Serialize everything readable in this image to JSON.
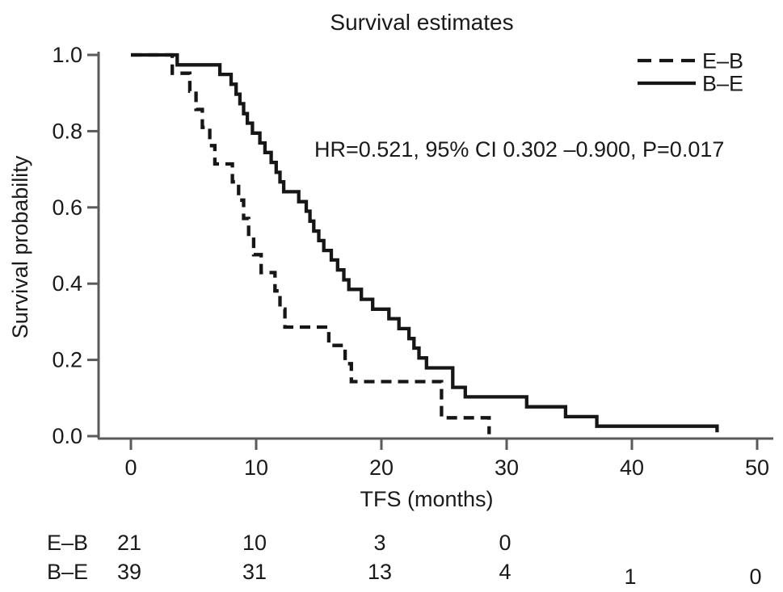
{
  "figure": {
    "title": "Survival estimates",
    "annotation": "HR=0.521, 95% CI 0.302 –0.900, P=0.017"
  },
  "chart_data": {
    "type": "line",
    "subtype": "kaplan-meier-step",
    "title": "Survival estimates",
    "xlabel": "TFS (months)",
    "ylabel": "Survival probability",
    "xlim": [
      0,
      50
    ],
    "ylim": [
      0.0,
      1.0
    ],
    "grid": false,
    "x_ticks": {
      "values": [
        0,
        10,
        20,
        30,
        40,
        50
      ],
      "labels": [
        "0",
        "10",
        "20",
        "30",
        "40",
        "50"
      ]
    },
    "y_ticks": {
      "values": [
        0.0,
        0.2,
        0.4,
        0.6,
        0.8,
        1.0
      ],
      "labels": [
        "0.0",
        "0.2",
        "0.4",
        "0.6",
        "0.8",
        "1.0"
      ]
    },
    "annotation": {
      "text": "HR=0.521, 95% CI 0.302 –0.900, P=0.017"
    },
    "legend": {
      "position": "top-right",
      "entries": [
        {
          "label": "E–B",
          "line_style": "dashed"
        },
        {
          "label": "B–E",
          "line_style": "solid"
        }
      ]
    },
    "series": [
      {
        "name": "E–B",
        "line_style": "dashed",
        "color": "#161616",
        "step": true,
        "points": [
          [
            0,
            1.0
          ],
          [
            3.3,
            0.952
          ],
          [
            4.7,
            0.905
          ],
          [
            5.2,
            0.857
          ],
          [
            5.7,
            0.81
          ],
          [
            6.3,
            0.762
          ],
          [
            6.7,
            0.714
          ],
          [
            8.1,
            0.667
          ],
          [
            8.6,
            0.619
          ],
          [
            9.0,
            0.571
          ],
          [
            9.4,
            0.524
          ],
          [
            9.8,
            0.476
          ],
          [
            10.4,
            0.429
          ],
          [
            11.5,
            0.381
          ],
          [
            11.9,
            0.333
          ],
          [
            12.3,
            0.286
          ],
          [
            15.8,
            0.238
          ],
          [
            17.1,
            0.19
          ],
          [
            17.6,
            0.143
          ],
          [
            24.8,
            0.048
          ],
          [
            28.6,
            0.005
          ]
        ]
      },
      {
        "name": "B–E",
        "line_style": "solid",
        "color": "#161616",
        "step": true,
        "points": [
          [
            0,
            1.0
          ],
          [
            3.7,
            0.974
          ],
          [
            7.1,
            0.949
          ],
          [
            8.0,
            0.923
          ],
          [
            8.4,
            0.897
          ],
          [
            8.7,
            0.872
          ],
          [
            9.0,
            0.846
          ],
          [
            9.3,
            0.821
          ],
          [
            9.7,
            0.795
          ],
          [
            10.3,
            0.769
          ],
          [
            10.7,
            0.744
          ],
          [
            11.2,
            0.718
          ],
          [
            11.6,
            0.692
          ],
          [
            11.9,
            0.667
          ],
          [
            12.2,
            0.641
          ],
          [
            13.4,
            0.615
          ],
          [
            14.0,
            0.59
          ],
          [
            14.3,
            0.564
          ],
          [
            14.6,
            0.538
          ],
          [
            15.0,
            0.513
          ],
          [
            15.4,
            0.487
          ],
          [
            16.0,
            0.462
          ],
          [
            16.5,
            0.436
          ],
          [
            17.0,
            0.41
          ],
          [
            17.4,
            0.385
          ],
          [
            18.4,
            0.359
          ],
          [
            19.3,
            0.333
          ],
          [
            20.6,
            0.308
          ],
          [
            21.4,
            0.282
          ],
          [
            22.2,
            0.256
          ],
          [
            22.6,
            0.231
          ],
          [
            23.0,
            0.205
          ],
          [
            23.6,
            0.179
          ],
          [
            25.7,
            0.128
          ],
          [
            26.7,
            0.103
          ],
          [
            31.6,
            0.077
          ],
          [
            34.7,
            0.051
          ],
          [
            37.2,
            0.026
          ],
          [
            46.8,
            0.01
          ]
        ]
      }
    ],
    "risk_table": {
      "times": [
        0,
        10,
        20,
        30,
        40,
        50
      ],
      "rows": [
        {
          "label": "E–B",
          "counts": [
            "21",
            "10",
            "3",
            "0"
          ]
        },
        {
          "label": "B–E",
          "counts": [
            "39",
            "31",
            "13",
            "4",
            "1",
            "0"
          ]
        }
      ]
    }
  }
}
